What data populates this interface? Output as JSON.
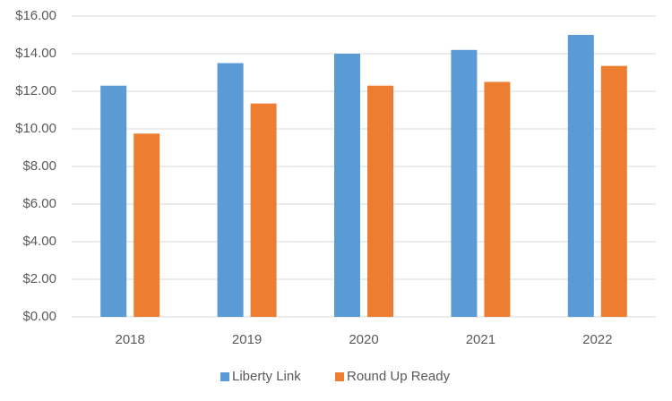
{
  "chart_data": {
    "type": "bar",
    "categories": [
      "2018",
      "2019",
      "2020",
      "2021",
      "2022"
    ],
    "series": [
      {
        "name": "Liberty Link",
        "color": "#5b9bd5",
        "values": [
          12.3,
          13.5,
          14.0,
          14.2,
          15.0
        ]
      },
      {
        "name": "Round Up Ready",
        "color": "#ed7d31",
        "values": [
          9.75,
          11.35,
          12.3,
          12.5,
          13.35
        ]
      }
    ],
    "ylim": [
      0,
      16
    ],
    "yticks": [
      {
        "value": 0,
        "label": "$0.00"
      },
      {
        "value": 2,
        "label": "$2.00"
      },
      {
        "value": 4,
        "label": "$4.00"
      },
      {
        "value": 6,
        "label": "$6.00"
      },
      {
        "value": 8,
        "label": "$8.00"
      },
      {
        "value": 10,
        "label": "$10.00"
      },
      {
        "value": 12,
        "label": "$12.00"
      },
      {
        "value": 14,
        "label": "$14.00"
      },
      {
        "value": 16,
        "label": "$16.00"
      }
    ],
    "grid": true,
    "legend": "bottom"
  }
}
